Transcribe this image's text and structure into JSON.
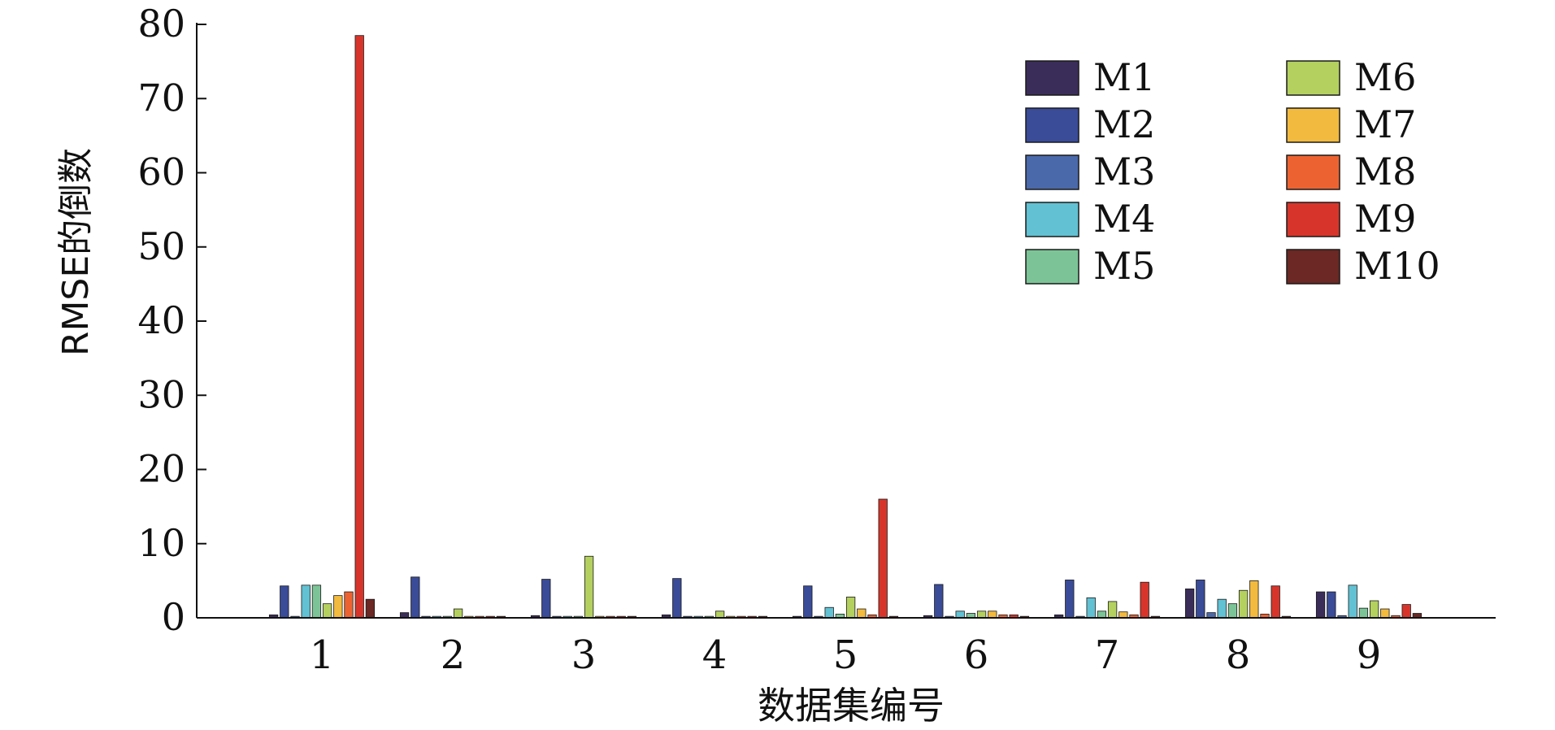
{
  "chart_data": {
    "type": "bar",
    "title": "",
    "xlabel": "数据集编号",
    "ylabel": "RMSE的倒数",
    "ylim": [
      0,
      80
    ],
    "yticks": [
      0,
      10,
      20,
      30,
      40,
      50,
      60,
      70,
      80
    ],
    "categories": [
      "1",
      "2",
      "3",
      "4",
      "5",
      "6",
      "7",
      "8",
      "9"
    ],
    "legend_position": "top-right",
    "grid": false,
    "series": [
      {
        "name": "M1",
        "color": "#3b2d5a",
        "values": [
          0.4,
          0.7,
          0.3,
          0.4,
          0.2,
          0.3,
          0.4,
          3.9,
          3.5
        ]
      },
      {
        "name": "M2",
        "color": "#3a4b98",
        "values": [
          4.3,
          5.5,
          5.2,
          5.3,
          4.3,
          4.5,
          5.1,
          5.1,
          3.5
        ]
      },
      {
        "name": "M3",
        "color": "#4a69aa",
        "values": [
          0.2,
          0.2,
          0.2,
          0.2,
          0.2,
          0.2,
          0.2,
          0.7,
          0.3
        ]
      },
      {
        "name": "M4",
        "color": "#62c1d2",
        "values": [
          4.4,
          0.2,
          0.2,
          0.2,
          1.4,
          0.9,
          2.7,
          2.5,
          4.4
        ]
      },
      {
        "name": "M5",
        "color": "#7cc497",
        "values": [
          4.4,
          0.2,
          0.2,
          0.2,
          0.5,
          0.6,
          0.9,
          1.9,
          1.3
        ]
      },
      {
        "name": "M6",
        "color": "#b4d05f",
        "values": [
          1.9,
          1.2,
          8.3,
          0.9,
          2.8,
          0.9,
          2.2,
          3.7,
          2.3
        ]
      },
      {
        "name": "M7",
        "color": "#f2ba3e",
        "values": [
          3.0,
          0.2,
          0.2,
          0.2,
          1.2,
          0.9,
          0.8,
          5.0,
          1.2
        ]
      },
      {
        "name": "M8",
        "color": "#ec6331",
        "values": [
          3.5,
          0.2,
          0.2,
          0.2,
          0.4,
          0.4,
          0.4,
          0.5,
          0.3
        ]
      },
      {
        "name": "M9",
        "color": "#d7352b",
        "values": [
          78.5,
          0.2,
          0.2,
          0.2,
          16.0,
          0.4,
          4.8,
          4.3,
          1.8
        ]
      },
      {
        "name": "M10",
        "color": "#6b2824",
        "values": [
          2.5,
          0.2,
          0.2,
          0.2,
          0.2,
          0.2,
          0.2,
          0.2,
          0.6
        ]
      }
    ]
  }
}
